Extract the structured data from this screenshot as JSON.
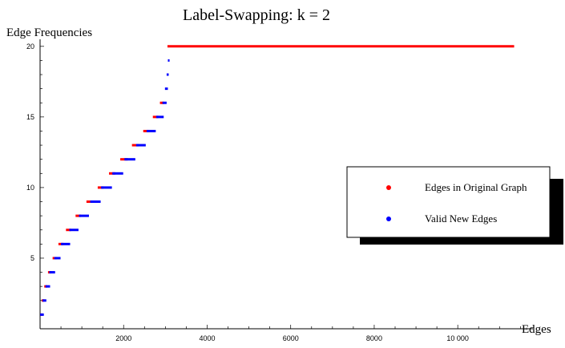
{
  "chart_data": {
    "type": "scatter",
    "title": "Label-Swapping: k = 2",
    "xlabel": "Edges",
    "ylabel": "Edge Frequencies",
    "xlim": [
      0,
      11800
    ],
    "ylim": [
      0,
      20.5
    ],
    "x_ticks": [
      2000,
      4000,
      6000,
      8000,
      10000
    ],
    "x_tick_labels": [
      "2000",
      "4000",
      "6000",
      "8000",
      "10 000"
    ],
    "y_ticks": [
      5,
      10,
      15,
      20
    ],
    "y_tick_labels": [
      "5",
      "10",
      "15",
      "20"
    ],
    "grid": false,
    "legend_position": "center-right",
    "series": [
      {
        "name": "Edges in Original Graph",
        "color": "#ff0000",
        "segments": [
          {
            "y": 1,
            "x_start": 0,
            "x_end": 60
          },
          {
            "y": 2,
            "x_start": 40,
            "x_end": 100
          },
          {
            "y": 3,
            "x_start": 100,
            "x_end": 170
          },
          {
            "y": 4,
            "x_start": 190,
            "x_end": 270
          },
          {
            "y": 5,
            "x_start": 300,
            "x_end": 400
          },
          {
            "y": 6,
            "x_start": 440,
            "x_end": 560
          },
          {
            "y": 7,
            "x_start": 620,
            "x_end": 740
          },
          {
            "y": 8,
            "x_start": 850,
            "x_end": 980
          },
          {
            "y": 9,
            "x_start": 1110,
            "x_end": 1250
          },
          {
            "y": 10,
            "x_start": 1380,
            "x_end": 1520
          },
          {
            "y": 11,
            "x_start": 1650,
            "x_end": 1800
          },
          {
            "y": 12,
            "x_start": 1920,
            "x_end": 2100
          },
          {
            "y": 13,
            "x_start": 2200,
            "x_end": 2360
          },
          {
            "y": 14,
            "x_start": 2470,
            "x_end": 2620
          },
          {
            "y": 15,
            "x_start": 2700,
            "x_end": 2830
          },
          {
            "y": 16,
            "x_start": 2870,
            "x_end": 2960
          },
          {
            "y": 20,
            "x_start": 3050,
            "x_end": 11350
          }
        ]
      },
      {
        "name": "Valid New Edges",
        "color": "#0000ff",
        "segments": [
          {
            "y": 1,
            "x_start": 0,
            "x_end": 90
          },
          {
            "y": 2,
            "x_start": 60,
            "x_end": 150
          },
          {
            "y": 3,
            "x_start": 130,
            "x_end": 240
          },
          {
            "y": 4,
            "x_start": 220,
            "x_end": 360
          },
          {
            "y": 5,
            "x_start": 340,
            "x_end": 490
          },
          {
            "y": 6,
            "x_start": 500,
            "x_end": 720
          },
          {
            "y": 7,
            "x_start": 700,
            "x_end": 920
          },
          {
            "y": 8,
            "x_start": 930,
            "x_end": 1170
          },
          {
            "y": 9,
            "x_start": 1200,
            "x_end": 1450
          },
          {
            "y": 10,
            "x_start": 1460,
            "x_end": 1720
          },
          {
            "y": 11,
            "x_start": 1730,
            "x_end": 1990
          },
          {
            "y": 12,
            "x_start": 2020,
            "x_end": 2280
          },
          {
            "y": 13,
            "x_start": 2300,
            "x_end": 2530
          },
          {
            "y": 14,
            "x_start": 2550,
            "x_end": 2770
          },
          {
            "y": 15,
            "x_start": 2780,
            "x_end": 2960
          },
          {
            "y": 16,
            "x_start": 2930,
            "x_end": 3030
          },
          {
            "y": 17,
            "x_start": 2990,
            "x_end": 3060
          },
          {
            "y": 18,
            "x_start": 3030,
            "x_end": 3080
          },
          {
            "y": 19,
            "x_start": 3060,
            "x_end": 3100
          }
        ]
      }
    ]
  }
}
